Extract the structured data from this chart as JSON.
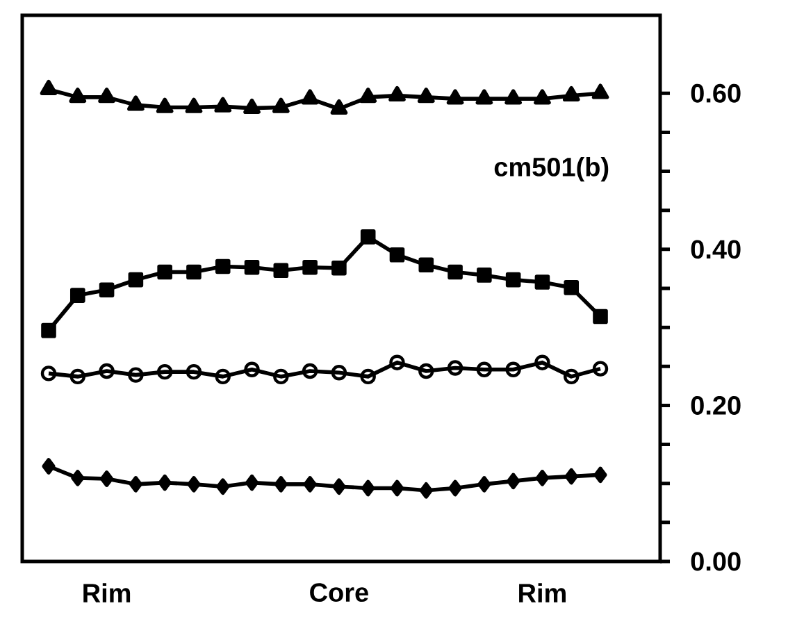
{
  "chart_data": {
    "type": "line",
    "categories": [
      null,
      null,
      "Rim",
      null,
      null,
      null,
      null,
      null,
      null,
      null,
      "Core",
      null,
      null,
      null,
      null,
      null,
      null,
      "Rim",
      null,
      null
    ],
    "series": [
      {
        "color": "#000000",
        "marker": "triangle",
        "values": [
          0.605,
          0.595,
          0.595,
          0.585,
          0.582,
          0.582,
          0.583,
          0.581,
          0.582,
          0.593,
          0.58,
          0.595,
          0.597,
          0.595,
          0.593,
          0.593,
          0.593,
          0.593,
          0.597,
          0.6
        ]
      },
      {
        "color": "#000000",
        "marker": "square",
        "values": [
          0.296,
          0.341,
          0.348,
          0.361,
          0.371,
          0.371,
          0.378,
          0.377,
          0.373,
          0.377,
          0.376,
          0.416,
          0.393,
          0.38,
          0.371,
          0.367,
          0.361,
          0.358,
          0.351,
          0.314
        ]
      },
      {
        "color": "#000000",
        "marker": "circle",
        "values": [
          0.241,
          0.237,
          0.244,
          0.239,
          0.243,
          0.243,
          0.237,
          0.246,
          0.237,
          0.244,
          0.242,
          0.237,
          0.255,
          0.244,
          0.248,
          0.246,
          0.246,
          0.255,
          0.237,
          0.247
        ]
      },
      {
        "color": "#000000",
        "marker": "diamond",
        "values": [
          0.122,
          0.107,
          0.106,
          0.099,
          0.101,
          0.099,
          0.096,
          0.101,
          0.099,
          0.099,
          0.096,
          0.094,
          0.094,
          0.091,
          0.094,
          0.099,
          0.103,
          0.107,
          0.109,
          0.111
        ]
      }
    ],
    "annotations": [
      "cm501(b)"
    ],
    "ylim": [
      0,
      0.7
    ],
    "yticks": [
      {
        "value": 0,
        "label": "0.00"
      },
      {
        "value": 0.2,
        "label": "0.20"
      },
      {
        "value": 0.4,
        "label": "0.40"
      },
      {
        "value": 0.6,
        "label": "0.60"
      }
    ],
    "grid": false,
    "line_style": "solid"
  }
}
